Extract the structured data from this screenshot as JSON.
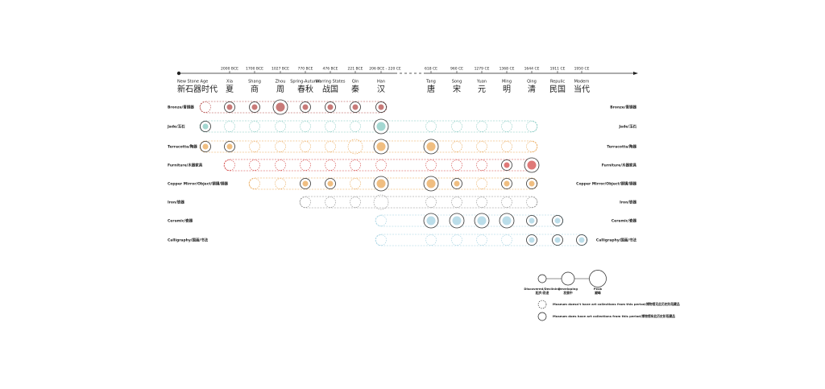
{
  "timeline": {
    "periods": [
      {
        "name": "New Stone Age",
        "zh": "新石器时代"
      },
      {
        "date": "2000 BCE",
        "name": "Xia",
        "zh": "夏"
      },
      {
        "date": "1700 BCE",
        "name": "Shang",
        "zh": "商"
      },
      {
        "date": "1027 BCE",
        "name": "Zhou",
        "zh": "周"
      },
      {
        "date": "770 BCE",
        "name": "Spring-Autumn",
        "zh": "春秋"
      },
      {
        "date": "476 BCE",
        "name": "Warring States",
        "zh": "战国"
      },
      {
        "date": "221 BCE",
        "name": "Qin",
        "zh": "秦"
      },
      {
        "date": "206 BCE - 220 CE",
        "name": "Han",
        "zh": "汉"
      },
      {
        "date": "618 CE",
        "name": "Tang",
        "zh": "唐"
      },
      {
        "date": "960 CE",
        "name": "Song",
        "zh": "宋"
      },
      {
        "date": "1279 CE",
        "name": "Yuan",
        "zh": "元"
      },
      {
        "date": "1368 CE",
        "name": "Ming",
        "zh": "明"
      },
      {
        "date": "1644 CE",
        "name": "Qing",
        "zh": "清"
      },
      {
        "date": "1911 CE",
        "name": "Repulic",
        "zh": "民国"
      },
      {
        "date": "1950 CE",
        "name": "Modern",
        "zh": "当代"
      }
    ]
  },
  "rows": [
    {
      "label": "Bronze/青铜器",
      "color": "#b0413e"
    },
    {
      "label": "Jade/玉石",
      "color": "#7cc6bd"
    },
    {
      "label": "Terracotta/陶器",
      "color": "#e9a24c"
    },
    {
      "label": "Furniture/木器家具",
      "color": "#d2403f"
    },
    {
      "label": "Copper Mirror/Object/铜镜/铜器",
      "color": "#e9a24c"
    },
    {
      "label": "Iron/铁器",
      "color": "#8a8a8a"
    },
    {
      "label": "Ceramic/瓷器",
      "color": "#9ecfe0"
    },
    {
      "label": "Calligraphy/国画/书法",
      "color": "#9ecfe0"
    }
  ],
  "legend": {
    "sizes": [
      {
        "name": "Discovered/Declining",
        "zh": "起步/衰退"
      },
      {
        "name": "Developing",
        "zh": "发展中"
      },
      {
        "name": "Peak",
        "zh": "巅峰"
      }
    ],
    "dashed": "Museum doesn't have art collections from this period/博物馆无此历史阶段藏品",
    "solid": "Museum does have art collections from this period/博物馆有此历史阶段藏品"
  }
}
